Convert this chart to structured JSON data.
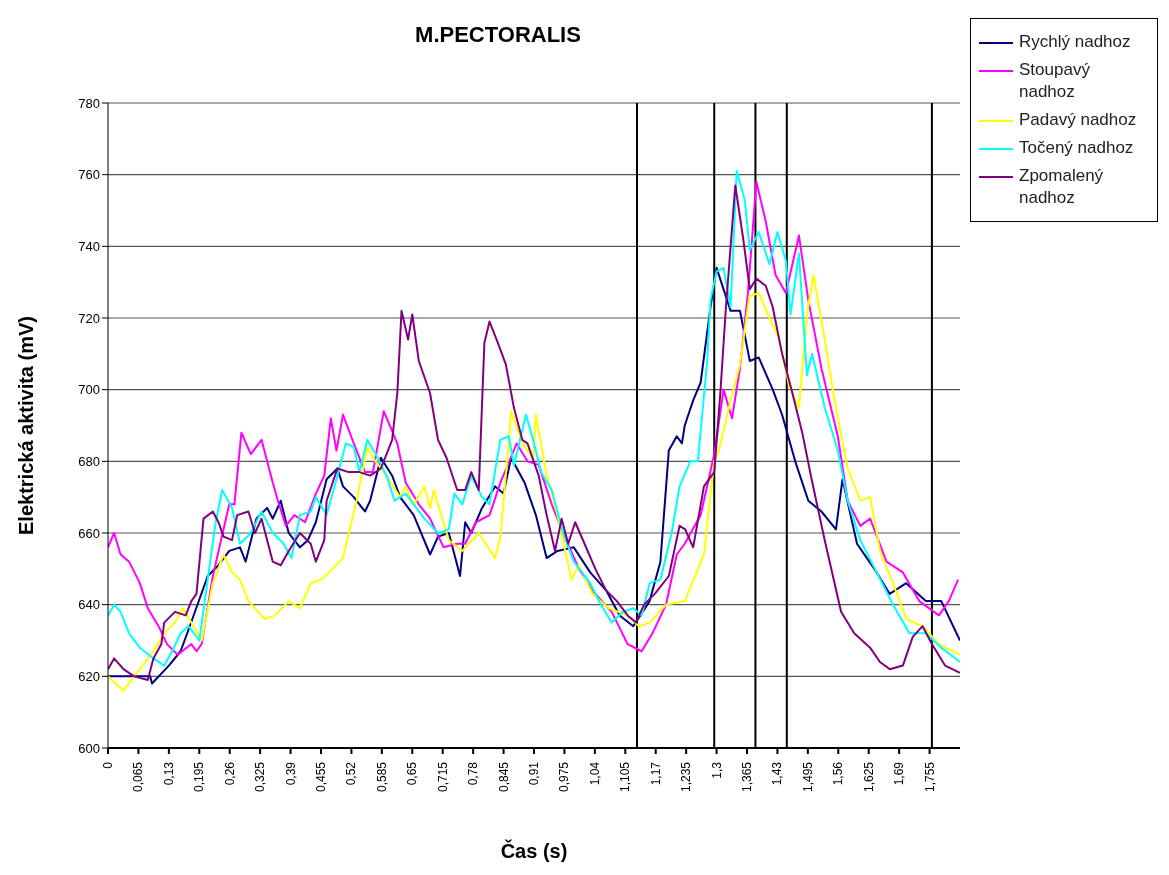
{
  "chart_data": {
    "type": "line",
    "title": "M.PECTORALIS",
    "xlabel": "Čas (s)",
    "ylabel": "Elektrická aktivita (mV)",
    "xlim": [
      0,
      1.82
    ],
    "xticks": [
      0,
      {
        "value": 0.065,
        "label": "0,065"
      },
      {
        "value": 0.13,
        "label": "0,13"
      },
      {
        "value": 0.195,
        "label": "0,195"
      },
      {
        "value": 0.26,
        "label": "0,26"
      },
      {
        "value": 0.325,
        "label": "0,325"
      },
      {
        "value": 0.39,
        "label": "0,39"
      },
      {
        "value": 0.455,
        "label": "0,455"
      },
      {
        "value": 0.52,
        "label": "0,52"
      },
      {
        "value": 0.585,
        "label": "0,585"
      },
      {
        "value": 0.65,
        "label": "0,65"
      },
      {
        "value": 0.715,
        "label": "0,715"
      },
      {
        "value": 0.78,
        "label": "0,78"
      },
      {
        "value": 0.845,
        "label": "0,845"
      },
      {
        "value": 0.91,
        "label": "0,91"
      },
      {
        "value": 0.975,
        "label": "0,975"
      },
      {
        "value": 1.04,
        "label": "1,04"
      },
      {
        "value": 1.105,
        "label": "1,105"
      },
      {
        "value": 1.17,
        "label": "1,17"
      },
      {
        "value": 1.235,
        "label": "1,235"
      },
      {
        "value": 1.3,
        "label": "1,3"
      },
      {
        "value": 1.365,
        "label": "1,365"
      },
      {
        "value": 1.43,
        "label": "1,43"
      },
      {
        "value": 1.495,
        "label": "1,495"
      },
      {
        "value": 1.56,
        "label": "1,56"
      },
      {
        "value": 1.625,
        "label": "1,625"
      },
      {
        "value": 1.69,
        "label": "1,69"
      },
      {
        "value": 1.755,
        "label": "1,755"
      }
    ],
    "ylim": [
      600,
      780
    ],
    "yticks": [
      600,
      620,
      640,
      660,
      680,
      700,
      720,
      740,
      760,
      780
    ],
    "grid": "y",
    "legend": "right",
    "marker": "none",
    "line_style": "solid",
    "ref_lines": [
      {
        "axis": "x",
        "value": 1.13,
        "color": "#000000"
      },
      {
        "axis": "x",
        "value": 1.295,
        "color": "#000000"
      },
      {
        "axis": "x",
        "value": 1.383,
        "color": "#000000"
      },
      {
        "axis": "x",
        "value": 1.45,
        "color": "#000000"
      },
      {
        "axis": "x",
        "value": 1.76,
        "color": "#000000"
      }
    ],
    "series": [
      {
        "name": "Rychlý nadhoz",
        "color": "#000080",
        "x": [
          0,
          0.09,
          0.094,
          0.13,
          0.155,
          0.172,
          0.213,
          0.236,
          0.259,
          0.282,
          0.294,
          0.317,
          0.34,
          0.352,
          0.369,
          0.386,
          0.41,
          0.427,
          0.444,
          0.467,
          0.49,
          0.502,
          0.525,
          0.549,
          0.56,
          0.583,
          0.607,
          0.624,
          0.653,
          0.688,
          0.705,
          0.728,
          0.752,
          0.763,
          0.776,
          0.799,
          0.827,
          0.845,
          0.861,
          0.89,
          0.914,
          0.937,
          0.96,
          0.995,
          1.03,
          1.064,
          1.093,
          1.122,
          1.157,
          1.18,
          1.198,
          1.215,
          1.226,
          1.232,
          1.25,
          1.266,
          1.287,
          1.3,
          1.33,
          1.35,
          1.371,
          1.39,
          1.42,
          1.44,
          1.468,
          1.496,
          1.524,
          1.555,
          1.569,
          1.6,
          1.642,
          1.67,
          1.705,
          1.747,
          1.78,
          1.82
        ],
        "values": [
          620,
          620,
          618,
          623,
          627,
          633,
          648,
          651,
          655,
          656,
          652,
          664,
          667,
          664,
          669,
          660,
          656,
          658,
          663,
          675,
          678,
          673,
          670,
          666,
          669,
          681,
          676,
          670,
          665,
          654,
          659,
          660,
          648,
          663,
          660,
          667,
          673,
          671,
          681,
          674,
          665,
          653,
          655,
          656,
          649,
          644,
          637,
          634,
          641,
          652,
          683,
          687,
          685,
          690,
          697,
          702,
          723,
          734,
          722,
          722,
          708,
          709,
          700,
          693,
          680,
          669,
          666,
          661,
          675,
          657,
          649,
          643,
          646,
          641,
          641,
          630
        ]
      },
      {
        "name": "Stoupavý nadhoz",
        "color": "#ff00ff",
        "x": [
          0,
          0.013,
          0.027,
          0.045,
          0.068,
          0.085,
          0.108,
          0.126,
          0.149,
          0.178,
          0.189,
          0.2,
          0.224,
          0.259,
          0.27,
          0.285,
          0.305,
          0.328,
          0.352,
          0.363,
          0.38,
          0.398,
          0.421,
          0.444,
          0.462,
          0.476,
          0.488,
          0.502,
          0.525,
          0.549,
          0.566,
          0.589,
          0.618,
          0.636,
          0.664,
          0.688,
          0.717,
          0.746,
          0.763,
          0.786,
          0.815,
          0.838,
          0.873,
          0.896,
          0.92,
          0.948,
          0.972,
          1.006,
          1.041,
          1.076,
          1.11,
          1.14,
          1.163,
          1.192,
          1.215,
          1.232,
          1.266,
          1.295,
          1.315,
          1.333,
          1.35,
          1.367,
          1.385,
          1.405,
          1.426,
          1.448,
          1.476,
          1.496,
          1.524,
          1.559,
          1.58,
          1.607,
          1.628,
          1.663,
          1.698,
          1.733,
          1.775,
          1.796,
          1.816
        ],
        "values": [
          656,
          660,
          654,
          652,
          646,
          639,
          634,
          629,
          626,
          629,
          627,
          629,
          648,
          668,
          668,
          688,
          682,
          686,
          674,
          669,
          662,
          665,
          663,
          671,
          676,
          692,
          683,
          693,
          685,
          677,
          677,
          694,
          685,
          674,
          668,
          664,
          656,
          657,
          657,
          663,
          665,
          674,
          685,
          680,
          679,
          668,
          660,
          650,
          643,
          638,
          629,
          627,
          632,
          640,
          654,
          657,
          665,
          682,
          700,
          692,
          706,
          727,
          758,
          747,
          732,
          727,
          743,
          725,
          706,
          687,
          669,
          662,
          664,
          652,
          649,
          641,
          637,
          641,
          647
        ]
      },
      {
        "name": "Padavý nadhoz",
        "color": "#ffff00",
        "x": [
          0,
          0.033,
          0.05,
          0.074,
          0.097,
          0.12,
          0.143,
          0.16,
          0.178,
          0.2,
          0.224,
          0.247,
          0.265,
          0.282,
          0.3,
          0.334,
          0.357,
          0.386,
          0.41,
          0.433,
          0.456,
          0.479,
          0.502,
          0.52,
          0.531,
          0.554,
          0.566,
          0.595,
          0.624,
          0.636,
          0.653,
          0.676,
          0.688,
          0.696,
          0.728,
          0.757,
          0.792,
          0.827,
          0.838,
          0.856,
          0.861,
          0.885,
          0.908,
          0.914,
          0.937,
          0.96,
          0.99,
          1.006,
          1.035,
          1.07,
          1.11,
          1.134,
          1.157,
          1.192,
          1.232,
          1.273,
          1.295,
          1.305,
          1.33,
          1.35,
          1.37,
          1.39,
          1.413,
          1.434,
          1.455,
          1.476,
          1.493,
          1.507,
          1.531,
          1.552,
          1.58,
          1.607,
          1.628,
          1.649,
          1.677,
          1.705,
          1.74,
          1.775,
          1.82
        ],
        "values": [
          620,
          616,
          619,
          623,
          627,
          632,
          635,
          639,
          635,
          630,
          646,
          654,
          649,
          647,
          641,
          636,
          637,
          641,
          639,
          646,
          647,
          650,
          653,
          663,
          669,
          684,
          681,
          676,
          670,
          673,
          668,
          673,
          667,
          672,
          658,
          655,
          660,
          653,
          659,
          685,
          694,
          685,
          681,
          693,
          676,
          665,
          647,
          651,
          643,
          639,
          637,
          634,
          635,
          640,
          641,
          654,
          680,
          683,
          697,
          707,
          726,
          727,
          720,
          714,
          701,
          695,
          721,
          732,
          714,
          697,
          678,
          669,
          670,
          655,
          646,
          636,
          634,
          629,
          626
        ]
      },
      {
        "name": "Točený nadhoz",
        "color": "#00ffff",
        "x": [
          0,
          0.013,
          0.027,
          0.045,
          0.068,
          0.097,
          0.12,
          0.137,
          0.155,
          0.172,
          0.195,
          0.213,
          0.23,
          0.244,
          0.265,
          0.282,
          0.305,
          0.328,
          0.352,
          0.375,
          0.392,
          0.41,
          0.433,
          0.444,
          0.467,
          0.49,
          0.508,
          0.525,
          0.537,
          0.554,
          0.572,
          0.595,
          0.612,
          0.636,
          0.676,
          0.705,
          0.728,
          0.74,
          0.757,
          0.776,
          0.799,
          0.815,
          0.838,
          0.856,
          0.867,
          0.893,
          0.908,
          0.925,
          0.948,
          0.972,
          0.995,
          1.03,
          1.053,
          1.076,
          1.1,
          1.122,
          1.14,
          1.157,
          1.18,
          1.204,
          1.221,
          1.244,
          1.26,
          1.28,
          1.287,
          1.3,
          1.315,
          1.33,
          1.343,
          1.36,
          1.371,
          1.39,
          1.413,
          1.43,
          1.448,
          1.458,
          1.476,
          1.493,
          1.504,
          1.531,
          1.559,
          1.58,
          1.607,
          1.642,
          1.677,
          1.712,
          1.747,
          1.78,
          1.82
        ],
        "values": [
          637,
          640,
          638,
          632,
          628,
          625,
          623,
          627,
          632,
          634,
          630,
          647,
          663,
          672,
          667,
          657,
          660,
          666,
          660,
          657,
          653,
          665,
          666,
          670,
          665,
          676,
          685,
          684,
          677,
          686,
          682,
          676,
          669,
          671,
          664,
          660,
          661,
          671,
          668,
          676,
          670,
          668,
          686,
          687,
          679,
          693,
          686,
          677,
          672,
          660,
          652,
          646,
          640,
          635,
          638,
          639,
          637,
          646,
          647,
          660,
          673,
          680,
          680,
          708,
          725,
          733,
          734,
          723,
          761,
          753,
          739,
          744,
          735,
          744,
          736,
          721,
          738,
          704,
          710,
          695,
          683,
          669,
          658,
          649,
          640,
          632,
          632,
          628,
          624
        ]
      },
      {
        "name": "Zpomalený nadhoz",
        "color": "#800080",
        "x": [
          0,
          0.013,
          0.033,
          0.056,
          0.085,
          0.097,
          0.114,
          0.12,
          0.143,
          0.166,
          0.178,
          0.189,
          0.204,
          0.224,
          0.236,
          0.247,
          0.265,
          0.276,
          0.3,
          0.314,
          0.328,
          0.352,
          0.369,
          0.386,
          0.41,
          0.433,
          0.444,
          0.462,
          0.467,
          0.49,
          0.514,
          0.537,
          0.56,
          0.583,
          0.607,
          0.618,
          0.627,
          0.641,
          0.65,
          0.664,
          0.688,
          0.705,
          0.723,
          0.746,
          0.763,
          0.776,
          0.792,
          0.804,
          0.815,
          0.833,
          0.85,
          0.867,
          0.885,
          0.896,
          0.92,
          0.937,
          0.955,
          0.969,
          0.983,
          0.998,
          1.018,
          1.041,
          1.064,
          1.087,
          1.11,
          1.128,
          1.145,
          1.168,
          1.198,
          1.221,
          1.233,
          1.25,
          1.273,
          1.295,
          1.308,
          1.32,
          1.34,
          1.357,
          1.371,
          1.385,
          1.405,
          1.42,
          1.44,
          1.462,
          1.483,
          1.503,
          1.531,
          1.566,
          1.594,
          1.628,
          1.649,
          1.67,
          1.698,
          1.719,
          1.74,
          1.76,
          1.788,
          1.82
        ],
        "values": [
          622,
          625,
          622,
          620,
          619,
          625,
          629,
          635,
          638,
          637,
          641,
          643,
          664,
          666,
          663,
          659,
          658,
          665,
          666,
          660,
          664,
          652,
          651,
          655,
          660,
          657,
          652,
          658,
          669,
          678,
          677,
          677,
          676,
          678,
          686,
          699,
          722,
          714,
          721,
          708,
          699,
          686,
          681,
          672,
          672,
          677,
          672,
          713,
          719,
          713,
          707,
          695,
          686,
          685,
          676,
          665,
          655,
          664,
          657,
          663,
          657,
          650,
          644,
          641,
          637,
          635,
          640,
          643,
          648,
          662,
          661,
          656,
          673,
          677,
          699,
          723,
          757,
          742,
          728,
          731,
          729,
          723,
          710,
          699,
          688,
          675,
          658,
          638,
          632,
          628,
          624,
          622,
          623,
          631,
          634,
          629,
          623,
          621
        ]
      }
    ]
  }
}
